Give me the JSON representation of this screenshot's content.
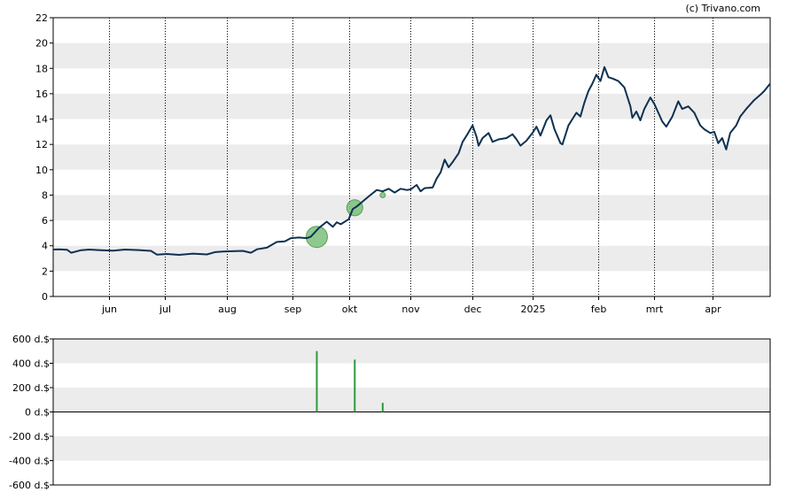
{
  "credit": "(c) Trivano.com",
  "chart_data": [
    {
      "type": "line",
      "title": "",
      "xlabel": "",
      "ylabel": "",
      "ylim": [
        0,
        22
      ],
      "y_ticks": [
        0,
        2,
        4,
        6,
        8,
        10,
        12,
        14,
        16,
        18,
        20,
        22
      ],
      "y_tick_labels": [
        "0",
        "2",
        "4",
        "6",
        "8",
        "10",
        "12",
        "14",
        "16",
        "18",
        "20",
        "22"
      ],
      "x_range": [
        "2024-05-06",
        "2025-04-30"
      ],
      "x_ticks": [
        "2024-06-03",
        "2024-07-01",
        "2024-08-01",
        "2024-09-03",
        "2024-10-01",
        "2024-11-01",
        "2024-12-02",
        "2025-01-01",
        "2025-02-03",
        "2025-03-03",
        "2025-04-01"
      ],
      "x_tick_labels": [
        "jun",
        "jul",
        "aug",
        "sep",
        "okt",
        "nov",
        "dec",
        "2025",
        "feb",
        "mrt",
        "apr"
      ],
      "grid": "alternating horizontal bands, dotted vertical lines at month ticks",
      "line_color": "#0d3152",
      "series": [
        {
          "points": [
            [
              "2024-05-06",
              3.7
            ],
            [
              "2024-05-09",
              3.72
            ],
            [
              "2024-05-13",
              3.68
            ],
            [
              "2024-05-15",
              3.45
            ],
            [
              "2024-05-20",
              3.65
            ],
            [
              "2024-05-24",
              3.7
            ],
            [
              "2024-05-30",
              3.65
            ],
            [
              "2024-06-05",
              3.62
            ],
            [
              "2024-06-11",
              3.7
            ],
            [
              "2024-06-18",
              3.66
            ],
            [
              "2024-06-24",
              3.6
            ],
            [
              "2024-06-27",
              3.3
            ],
            [
              "2024-07-02",
              3.35
            ],
            [
              "2024-07-08",
              3.28
            ],
            [
              "2024-07-15",
              3.38
            ],
            [
              "2024-07-22",
              3.32
            ],
            [
              "2024-07-26",
              3.5
            ],
            [
              "2024-07-30",
              3.55
            ],
            [
              "2024-08-05",
              3.58
            ],
            [
              "2024-08-09",
              3.6
            ],
            [
              "2024-08-13",
              3.45
            ],
            [
              "2024-08-16",
              3.72
            ],
            [
              "2024-08-21",
              3.85
            ],
            [
              "2024-08-26",
              4.3
            ],
            [
              "2024-08-30",
              4.35
            ],
            [
              "2024-09-02",
              4.6
            ],
            [
              "2024-09-06",
              4.65
            ],
            [
              "2024-09-10",
              4.6
            ],
            [
              "2024-09-12",
              4.72
            ],
            [
              "2024-09-16",
              5.4
            ],
            [
              "2024-09-20",
              5.9
            ],
            [
              "2024-09-23",
              5.5
            ],
            [
              "2024-09-25",
              5.85
            ],
            [
              "2024-09-27",
              5.7
            ],
            [
              "2024-10-01",
              6.1
            ],
            [
              "2024-10-03",
              6.9
            ],
            [
              "2024-10-05",
              7.1
            ],
            [
              "2024-10-08",
              7.5
            ],
            [
              "2024-10-11",
              7.9
            ],
            [
              "2024-10-15",
              8.4
            ],
            [
              "2024-10-18",
              8.3
            ],
            [
              "2024-10-21",
              8.5
            ],
            [
              "2024-10-24",
              8.2
            ],
            [
              "2024-10-27",
              8.5
            ],
            [
              "2024-10-30",
              8.4
            ],
            [
              "2024-11-01",
              8.45
            ],
            [
              "2024-11-04",
              8.8
            ],
            [
              "2024-11-06",
              8.3
            ],
            [
              "2024-11-08",
              8.55
            ],
            [
              "2024-11-12",
              8.6
            ],
            [
              "2024-11-14",
              9.3
            ],
            [
              "2024-11-16",
              9.8
            ],
            [
              "2024-11-18",
              10.8
            ],
            [
              "2024-11-20",
              10.2
            ],
            [
              "2024-11-22",
              10.6
            ],
            [
              "2024-11-25",
              11.3
            ],
            [
              "2024-11-27",
              12.2
            ],
            [
              "2024-11-29",
              12.7
            ],
            [
              "2024-12-02",
              13.5
            ],
            [
              "2024-12-04",
              12.6
            ],
            [
              "2024-12-05",
              11.9
            ],
            [
              "2024-12-07",
              12.5
            ],
            [
              "2024-12-10",
              12.9
            ],
            [
              "2024-12-12",
              12.2
            ],
            [
              "2024-12-15",
              12.4
            ],
            [
              "2024-12-19",
              12.5
            ],
            [
              "2024-12-22",
              12.8
            ],
            [
              "2024-12-24",
              12.4
            ],
            [
              "2024-12-26",
              11.9
            ],
            [
              "2024-12-29",
              12.3
            ],
            [
              "2025-01-01",
              12.9
            ],
            [
              "2025-01-03",
              13.4
            ],
            [
              "2025-01-05",
              12.7
            ],
            [
              "2025-01-08",
              13.9
            ],
            [
              "2025-01-10",
              14.3
            ],
            [
              "2025-01-12",
              13.2
            ],
            [
              "2025-01-15",
              12.1
            ],
            [
              "2025-01-16",
              12.0
            ],
            [
              "2025-01-19",
              13.5
            ],
            [
              "2025-01-21",
              14.0
            ],
            [
              "2025-01-23",
              14.5
            ],
            [
              "2025-01-25",
              14.2
            ],
            [
              "2025-01-27",
              15.3
            ],
            [
              "2025-01-29",
              16.2
            ],
            [
              "2025-01-31",
              16.8
            ],
            [
              "2025-02-02",
              17.5
            ],
            [
              "2025-02-04",
              17.0
            ],
            [
              "2025-02-06",
              18.1
            ],
            [
              "2025-02-08",
              17.3
            ],
            [
              "2025-02-10",
              17.2
            ],
            [
              "2025-02-13",
              17.0
            ],
            [
              "2025-02-16",
              16.5
            ],
            [
              "2025-02-19",
              15.0
            ],
            [
              "2025-02-20",
              14.1
            ],
            [
              "2025-02-22",
              14.6
            ],
            [
              "2025-02-24",
              13.9
            ],
            [
              "2025-02-26",
              14.8
            ],
            [
              "2025-03-01",
              15.7
            ],
            [
              "2025-03-03",
              15.2
            ],
            [
              "2025-03-05",
              14.5
            ],
            [
              "2025-03-07",
              13.8
            ],
            [
              "2025-03-09",
              13.4
            ],
            [
              "2025-03-12",
              14.2
            ],
            [
              "2025-03-15",
              15.4
            ],
            [
              "2025-03-17",
              14.8
            ],
            [
              "2025-03-20",
              15.0
            ],
            [
              "2025-03-23",
              14.5
            ],
            [
              "2025-03-26",
              13.5
            ],
            [
              "2025-03-28",
              13.2
            ],
            [
              "2025-03-31",
              12.9
            ],
            [
              "2025-04-02",
              13.0
            ],
            [
              "2025-04-04",
              12.1
            ],
            [
              "2025-04-06",
              12.5
            ],
            [
              "2025-04-08",
              11.6
            ],
            [
              "2025-04-10",
              12.9
            ],
            [
              "2025-04-13",
              13.5
            ],
            [
              "2025-04-15",
              14.2
            ],
            [
              "2025-04-18",
              14.8
            ],
            [
              "2025-04-22",
              15.5
            ],
            [
              "2025-04-25",
              15.9
            ],
            [
              "2025-04-27",
              16.2
            ],
            [
              "2025-04-30",
              16.8
            ]
          ]
        }
      ],
      "event_markers": [
        {
          "date": "2024-09-15",
          "value": 4.7,
          "magnitude": "large"
        },
        {
          "date": "2024-10-04",
          "value": 7.0,
          "magnitude": "medium"
        },
        {
          "date": "2024-10-18",
          "value": 8.0,
          "magnitude": "small"
        }
      ],
      "marker_color": "#7bbf7b"
    },
    {
      "type": "bar",
      "title": "",
      "xlabel": "",
      "ylabel": "",
      "ylim": [
        -600,
        600
      ],
      "y_ticks": [
        600,
        400,
        200,
        0,
        -200,
        -400,
        -600
      ],
      "y_tick_labels": [
        "600 d.$",
        "400 d.$",
        "200 d.$",
        "0 d.$",
        "-200 d.$",
        "-400 d.$",
        "-600 d.$"
      ],
      "x_range": [
        "2024-05-06",
        "2025-04-30"
      ],
      "bar_color": "#2e9a3e",
      "bars": [
        {
          "date": "2024-09-15",
          "value": 500
        },
        {
          "date": "2024-10-04",
          "value": 430
        },
        {
          "date": "2024-10-18",
          "value": 75
        }
      ]
    }
  ]
}
